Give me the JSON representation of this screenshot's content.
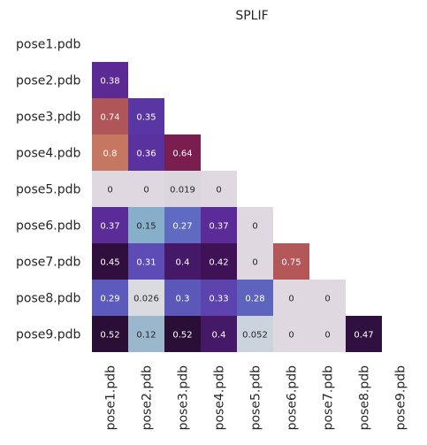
{
  "chart_data": {
    "type": "heatmap",
    "title": "SPLIF",
    "xlabel": "",
    "ylabel": "",
    "row_labels": [
      "pose1.pdb",
      "pose2.pdb",
      "pose3.pdb",
      "pose4.pdb",
      "pose5.pdb",
      "pose6.pdb",
      "pose7.pdb",
      "pose8.pdb",
      "pose9.pdb"
    ],
    "col_labels": [
      "pose1.pdb",
      "pose2.pdb",
      "pose3.pdb",
      "pose4.pdb",
      "pose5.pdb",
      "pose6.pdb",
      "pose7.pdb",
      "pose8.pdb",
      "pose9.pdb"
    ],
    "matrix": [
      [],
      [
        "0.38"
      ],
      [
        "0.74",
        "0.35"
      ],
      [
        "0.8",
        "0.36",
        "0.64"
      ],
      [
        "0",
        "0",
        "0.019",
        "0"
      ],
      [
        "0.37",
        "0.15",
        "0.27",
        "0.37",
        "0"
      ],
      [
        "0.45",
        "0.31",
        "0.4",
        "0.42",
        "0",
        "0.75"
      ],
      [
        "0.29",
        "0.026",
        "0.3",
        "0.33",
        "0.28",
        "0",
        "0"
      ],
      [
        "0.52",
        "0.12",
        "0.52",
        "0.4",
        "0.052",
        "0",
        "0",
        "0.47"
      ]
    ],
    "mask": "upper-triangle-and-diagonal",
    "colormap": "twilight",
    "colors": {
      "pose2.pdb|pose1.pdb": "#5b2a94",
      "pose3.pdb|pose1.pdb": "#b15658",
      "pose3.pdb|pose2.pdb": "#5a36a4",
      "pose4.pdb|pose1.pdb": "#c57761",
      "pose4.pdb|pose2.pdb": "#5a32a0",
      "pose4.pdb|pose3.pdb": "#7a1d4f",
      "pose5.pdb|pose1.pdb": "#e0d8e0",
      "pose5.pdb|pose2.pdb": "#e0d8e0",
      "pose5.pdb|pose3.pdb": "#dbd5dd",
      "pose5.pdb|pose4.pdb": "#e0d8e0",
      "pose6.pdb|pose1.pdb": "#5b2c98",
      "pose6.pdb|pose2.pdb": "#87afc9",
      "pose6.pdb|pose3.pdb": "#5f6bc0",
      "pose6.pdb|pose4.pdb": "#5b2c98",
      "pose6.pdb|pose5.pdb": "#e0d8e0",
      "pose7.pdb|pose1.pdb": "#300e3d",
      "pose7.pdb|pose2.pdb": "#5d4cb5",
      "pose7.pdb|pose3.pdb": "#461968",
      "pose7.pdb|pose4.pdb": "#3e1255",
      "pose7.pdb|pose5.pdb": "#e0d8e0",
      "pose7.pdb|pose6.pdb": "#b35758",
      "pose8.pdb|pose1.pdb": "#5c5bbd",
      "pose8.pdb|pose2.pdb": "#d9dbdf",
      "pose8.pdb|pose3.pdb": "#5b58ba",
      "pose8.pdb|pose4.pdb": "#5d43ad",
      "pose8.pdb|pose5.pdb": "#5e63be",
      "pose8.pdb|pose6.pdb": "#e0d8e0",
      "pose8.pdb|pose7.pdb": "#e0d8e0",
      "pose9.pdb|pose1.pdb": "#2a0e36",
      "pose9.pdb|pose2.pdb": "#9ab7cc",
      "pose9.pdb|pose3.pdb": "#2a0e36",
      "pose9.pdb|pose4.pdb": "#461968",
      "pose9.pdb|pose5.pdb": "#cbd4dd",
      "pose9.pdb|pose6.pdb": "#e0d8e0",
      "pose9.pdb|pose7.pdb": "#e0d8e0",
      "pose9.pdb|pose8.pdb": "#301040"
    },
    "text_color_light": "#ffffff",
    "text_color_dark": "#262626",
    "grid": false,
    "legend": "none"
  }
}
